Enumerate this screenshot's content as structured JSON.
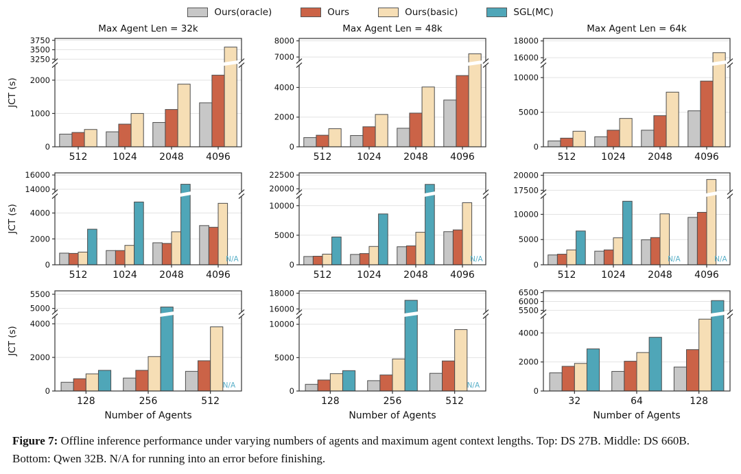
{
  "style": {
    "edge_color": "#4d4d4d",
    "axis_color": "#333333",
    "grid_color": "#e2e2e2",
    "na_color": "#5ab0c8",
    "background": "#ffffff"
  },
  "legend": {
    "items": [
      {
        "label": "Ours(oracle)",
        "color": "#c7c7c7"
      },
      {
        "label": "Ours",
        "color": "#cb6347"
      },
      {
        "label": "Ours(basic)",
        "color": "#f6deb5"
      },
      {
        "label": "SGL(MC)",
        "color": "#4fa6b8"
      }
    ]
  },
  "axis_labels": {
    "y": "JCT (s)",
    "x": "Number of Agents"
  },
  "na_label": "N/A",
  "caption": {
    "prefix": "Figure 7:",
    "body": " Offline inference performance under varying numbers of agents and maximum agent context lengths. Top: DS 27B. Middle: DS 660B. Bottom: Qwen 32B. N/A for running into an error before finishing."
  },
  "chart_data": [
    {
      "type": "bar",
      "row": 0,
      "col": 0,
      "title": "Max Agent Len = 32k",
      "categories": [
        "512",
        "1024",
        "2048",
        "4096"
      ],
      "series": [
        {
          "name": "Ours(oracle)",
          "values": [
            380,
            450,
            730,
            1320
          ]
        },
        {
          "name": "Ours",
          "values": [
            430,
            680,
            1120,
            2150
          ]
        },
        {
          "name": "Ours(basic)",
          "values": [
            520,
            1000,
            1880,
            3570
          ]
        }
      ],
      "axis_break": {
        "lower_range": [
          0,
          2450
        ],
        "lower_ticks": [
          0,
          1000,
          2000
        ],
        "upper_range": [
          3200,
          3800
        ],
        "upper_ticks": [
          3250,
          3500,
          3750
        ]
      }
    },
    {
      "type": "bar",
      "row": 0,
      "col": 1,
      "title": "Max Agent Len = 48k",
      "categories": [
        "512",
        "1024",
        "2048",
        "4096"
      ],
      "series": [
        {
          "name": "Ours(oracle)",
          "values": [
            620,
            760,
            1250,
            3150
          ]
        },
        {
          "name": "Ours",
          "values": [
            780,
            1350,
            2270,
            4800
          ]
        },
        {
          "name": "Ours(basic)",
          "values": [
            1220,
            2180,
            4030,
            7200
          ]
        }
      ],
      "axis_break": {
        "lower_range": [
          0,
          5500
        ],
        "lower_ticks": [
          0,
          2000,
          4000
        ],
        "upper_range": [
          6750,
          8150
        ],
        "upper_ticks": [
          7000,
          8000
        ]
      }
    },
    {
      "type": "bar",
      "row": 0,
      "col": 2,
      "title": "Max Agent Len = 64k",
      "categories": [
        "512",
        "1024",
        "2048",
        "4096"
      ],
      "series": [
        {
          "name": "Ours(oracle)",
          "values": [
            850,
            1450,
            2400,
            5200
          ]
        },
        {
          "name": "Ours",
          "values": [
            1250,
            2400,
            4500,
            9500
          ]
        },
        {
          "name": "Ours(basic)",
          "values": [
            2250,
            4100,
            7900,
            16600
          ]
        }
      ],
      "axis_break": {
        "lower_range": [
          0,
          11800
        ],
        "lower_ticks": [
          0,
          5000,
          10000
        ],
        "upper_range": [
          15600,
          18300
        ],
        "upper_ticks": [
          16000,
          18000
        ]
      }
    },
    {
      "type": "bar",
      "row": 1,
      "col": 0,
      "categories": [
        "512",
        "1024",
        "2048",
        "4096"
      ],
      "series": [
        {
          "name": "Ours(oracle)",
          "values": [
            900,
            1100,
            1700,
            3030
          ]
        },
        {
          "name": "Ours",
          "values": [
            880,
            1100,
            1650,
            2900
          ]
        },
        {
          "name": "Ours(basic)",
          "values": [
            980,
            1500,
            2550,
            4750
          ]
        },
        {
          "name": "SGL(MC)",
          "values": [
            2750,
            4850,
            14700,
            "NA"
          ]
        }
      ],
      "axis_break": {
        "lower_range": [
          0,
          5300
        ],
        "lower_ticks": [
          0,
          2000,
          4000
        ],
        "upper_range": [
          13600,
          16300
        ],
        "upper_ticks": [
          14000,
          16000
        ]
      }
    },
    {
      "type": "bar",
      "row": 1,
      "col": 1,
      "categories": [
        "512",
        "1024",
        "2048",
        "4096"
      ],
      "series": [
        {
          "name": "Ours(oracle)",
          "values": [
            1400,
            1750,
            3050,
            5600
          ]
        },
        {
          "name": "Ours",
          "values": [
            1450,
            1900,
            3200,
            5900
          ]
        },
        {
          "name": "Ours(basic)",
          "values": [
            1800,
            3100,
            5500,
            10500
          ]
        },
        {
          "name": "SGL(MC)",
          "values": [
            4700,
            8600,
            20800,
            "NA"
          ]
        }
      ],
      "axis_break": {
        "lower_range": [
          0,
          11600
        ],
        "lower_ticks": [
          0,
          5000,
          10000
        ],
        "upper_range": [
          19400,
          22900
        ],
        "upper_ticks": [
          20000,
          22500
        ]
      }
    },
    {
      "type": "bar",
      "row": 1,
      "col": 2,
      "categories": [
        "512",
        "1024",
        "2048",
        "4096"
      ],
      "series": [
        {
          "name": "Ours(oracle)",
          "values": [
            1950,
            2700,
            4950,
            9400
          ]
        },
        {
          "name": "Ours",
          "values": [
            2100,
            2950,
            5400,
            10400
          ]
        },
        {
          "name": "Ours(basic)",
          "values": [
            2950,
            5350,
            10100,
            19300
          ]
        },
        {
          "name": "SGL(MC)",
          "values": [
            6700,
            12600,
            "NA",
            "NA"
          ]
        }
      ],
      "axis_break": {
        "lower_range": [
          0,
          13600
        ],
        "lower_ticks": [
          0,
          5000,
          10000
        ],
        "upper_range": [
          17200,
          20400
        ],
        "upper_ticks": [
          17500,
          20000
        ]
      }
    },
    {
      "type": "bar",
      "row": 2,
      "col": 0,
      "categories": [
        "128",
        "256",
        "512"
      ],
      "series": [
        {
          "name": "Ours(oracle)",
          "values": [
            520,
            770,
            1170
          ]
        },
        {
          "name": "Ours",
          "values": [
            730,
            1230,
            1800
          ]
        },
        {
          "name": "Ours(basic)",
          "values": [
            1020,
            2050,
            3820
          ]
        },
        {
          "name": "SGL(MC)",
          "values": [
            1230,
            5050,
            "NA"
          ]
        }
      ],
      "axis_break": {
        "lower_range": [
          0,
          4450
        ],
        "lower_ticks": [
          0,
          2000,
          4000
        ],
        "upper_range": [
          4870,
          5620
        ],
        "upper_ticks": [
          5000,
          5500
        ]
      }
    },
    {
      "type": "bar",
      "row": 2,
      "col": 1,
      "categories": [
        "128",
        "256",
        "512"
      ],
      "series": [
        {
          "name": "Ours(oracle)",
          "values": [
            1000,
            1550,
            2650
          ]
        },
        {
          "name": "Ours",
          "values": [
            1650,
            2400,
            4500
          ]
        },
        {
          "name": "Ours(basic)",
          "values": [
            2600,
            4800,
            9200
          ]
        },
        {
          "name": "SGL(MC)",
          "values": [
            3050,
            17100,
            "NA"
          ]
        }
      ],
      "axis_break": {
        "lower_range": [
          0,
          11200
        ],
        "lower_ticks": [
          0,
          5000,
          10000
        ],
        "upper_range": [
          15600,
          18300
        ],
        "upper_ticks": [
          16000,
          18000
        ]
      }
    },
    {
      "type": "bar",
      "row": 2,
      "col": 2,
      "categories": [
        "32",
        "64",
        "128"
      ],
      "series": [
        {
          "name": "Ours(oracle)",
          "values": [
            1250,
            1350,
            1650
          ]
        },
        {
          "name": "Ours",
          "values": [
            1700,
            2050,
            2850
          ]
        },
        {
          "name": "Ours(basic)",
          "values": [
            1900,
            2650,
            4950
          ]
        },
        {
          "name": "SGL(MC)",
          "values": [
            2900,
            3700,
            6050
          ]
        }
      ],
      "axis_break": {
        "lower_range": [
          0,
          5150
        ],
        "lower_ticks": [
          0,
          2000,
          4000
        ],
        "upper_range": [
          5400,
          6600
        ],
        "upper_ticks": [
          5500,
          6000,
          6500
        ]
      }
    }
  ]
}
